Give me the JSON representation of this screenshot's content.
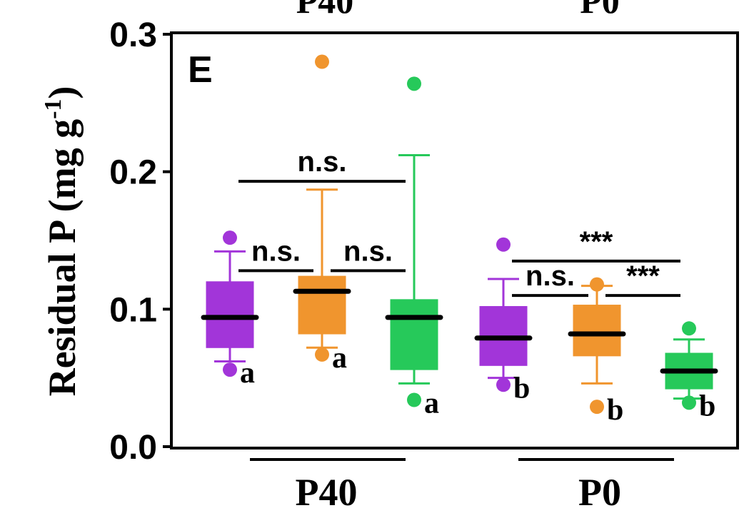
{
  "chart_data": {
    "type": "box",
    "panel_label": "E",
    "top_labels": [
      "P40",
      "P0"
    ],
    "ylabel": "Residual P (mg g-1)",
    "ylabel_parts": {
      "main": "Residual P (mg g",
      "sup": "-1",
      "close": ")"
    },
    "ylim": [
      0.0,
      0.3
    ],
    "yticks": [
      "0.0",
      "0.1",
      "0.2",
      "0.3"
    ],
    "ytick_values": [
      0.0,
      0.1,
      0.2,
      0.3
    ],
    "groups": [
      "P40",
      "P0"
    ],
    "series_colors": [
      "#a235d9",
      "#f0952e",
      "#26c95a"
    ],
    "boxes": [
      {
        "group": "P40",
        "series": 0,
        "whisker_low": 0.062,
        "q1": 0.072,
        "median": 0.094,
        "q3": 0.12,
        "whisker_high": 0.142,
        "outliers": [
          0.152,
          0.056
        ],
        "letter": "a"
      },
      {
        "group": "P40",
        "series": 1,
        "whisker_low": 0.072,
        "q1": 0.082,
        "median": 0.113,
        "q3": 0.124,
        "whisker_high": 0.187,
        "outliers": [
          0.28,
          0.067
        ],
        "letter": "a"
      },
      {
        "group": "P40",
        "series": 2,
        "whisker_low": 0.046,
        "q1": 0.056,
        "median": 0.094,
        "q3": 0.107,
        "whisker_high": 0.212,
        "outliers": [
          0.264,
          0.034
        ],
        "letter": "a"
      },
      {
        "group": "P0",
        "series": 0,
        "whisker_low": 0.05,
        "q1": 0.059,
        "median": 0.079,
        "q3": 0.102,
        "whisker_high": 0.122,
        "outliers": [
          0.147,
          0.045
        ],
        "letter": "b"
      },
      {
        "group": "P0",
        "series": 1,
        "whisker_low": 0.046,
        "q1": 0.066,
        "median": 0.082,
        "q3": 0.103,
        "whisker_high": 0.117,
        "outliers": [
          0.118,
          0.029
        ],
        "letter": "b"
      },
      {
        "group": "P0",
        "series": 2,
        "whisker_low": 0.035,
        "q1": 0.042,
        "median": 0.055,
        "q3": 0.068,
        "whisker_high": 0.078,
        "outliers": [
          0.086,
          0.032
        ],
        "letter": "b"
      }
    ],
    "comparisons": [
      {
        "from_box": 0,
        "to_box": 2,
        "y": 0.193,
        "label": "n.s."
      },
      {
        "from_box": 0,
        "to_box": 1,
        "y": 0.128,
        "label": "n.s."
      },
      {
        "from_box": 1,
        "to_box": 2,
        "y": 0.128,
        "label": "n.s."
      },
      {
        "from_box": 3,
        "to_box": 5,
        "y": 0.135,
        "label": "***"
      },
      {
        "from_box": 3,
        "to_box": 4,
        "y": 0.11,
        "label": "n.s."
      },
      {
        "from_box": 4,
        "to_box": 5,
        "y": 0.11,
        "label": "***"
      }
    ]
  }
}
